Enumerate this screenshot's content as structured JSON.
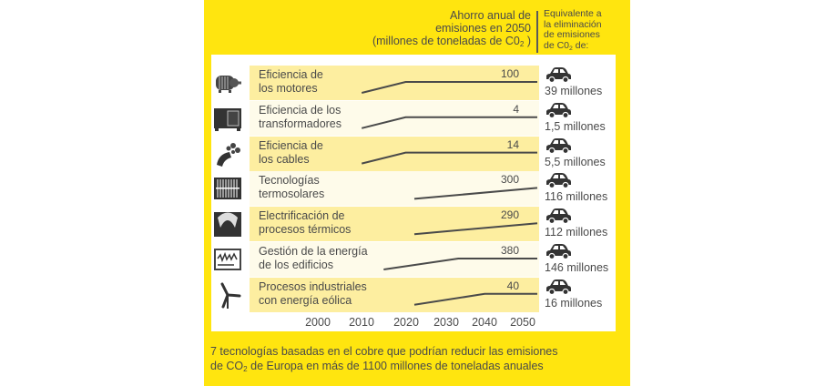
{
  "header": {
    "left_line1": "Ahorro anual de",
    "left_line2": "emisiones en 2050",
    "left_line3_pre": "(millones de toneladas de C0",
    "left_line3_sub": "2",
    "left_line3_post": " )",
    "right_line1": "Equivalente a",
    "right_line2": "la eliminación",
    "right_line3": "de emisiones",
    "right_line4_pre": "de C0",
    "right_line4_sub": "2",
    "right_line4_post": " de:"
  },
  "footer": {
    "line1": "7 tecnologías basadas en el cobre que podrían reducir las emisiones",
    "line2_pre": "de CO",
    "line2_sub": "2",
    "line2_post": " de Europa en más de 1100 millones de toneladas anuales"
  },
  "colors": {
    "panel_yellow": "#ffe50f",
    "row_dark": "#fdeea0",
    "row_light": "#fefbea",
    "line": "#4a4a4a"
  },
  "chart_data": {
    "type": "line",
    "title": "Ahorro anual de emisiones en 2050 (millones de toneladas de CO2)",
    "xlabel": "",
    "ylabel": "",
    "x_ticks": [
      2000,
      2010,
      2020,
      2030,
      2040,
      2050
    ],
    "xlim": [
      2000,
      2050
    ],
    "series": [
      {
        "name": "Eficiencia de los motores",
        "label_line1": "Eficiencia de",
        "label_line2": "los motores",
        "icon": "motor-icon",
        "value_2050": "100",
        "cars": "39 millones",
        "points": [
          [
            2010,
            0
          ],
          [
            2020,
            1
          ],
          [
            2050,
            1
          ]
        ]
      },
      {
        "name": "Eficiencia de los transformadores",
        "label_line1": "Eficiencia de los",
        "label_line2": "transformadores",
        "icon": "transformer-icon",
        "value_2050": "4",
        "cars": "1,5 millones",
        "points": [
          [
            2010,
            0
          ],
          [
            2020,
            1
          ],
          [
            2050,
            1
          ]
        ]
      },
      {
        "name": "Eficiencia de los cables",
        "label_line1": "Eficiencia de",
        "label_line2": "los cables",
        "icon": "cable-icon",
        "value_2050": "14",
        "cars": "5,5 millones",
        "points": [
          [
            2010,
            0
          ],
          [
            2020,
            1
          ],
          [
            2050,
            1
          ]
        ]
      },
      {
        "name": "Tecnologías termosolares",
        "label_line1": "Tecnologías",
        "label_line2": "termosolares",
        "icon": "solar-panel-icon",
        "value_2050": "300",
        "cars": "116 millones",
        "points": [
          [
            2022,
            0
          ],
          [
            2050,
            1
          ]
        ]
      },
      {
        "name": "Electrificación de procesos térmicos",
        "label_line1": "Electrificación de",
        "label_line2": "procesos térmicos",
        "icon": "furnace-icon",
        "value_2050": "290",
        "cars": "112 millones",
        "points": [
          [
            2022,
            0
          ],
          [
            2050,
            1
          ]
        ]
      },
      {
        "name": "Gestión de la energía de los edificios",
        "label_line1": "Gestión de la energía",
        "label_line2": "de los edificios",
        "icon": "monitor-icon",
        "value_2050": "380",
        "cars": "146 millones",
        "points": [
          [
            2015,
            0
          ],
          [
            2032,
            1
          ],
          [
            2050,
            1
          ]
        ]
      },
      {
        "name": "Procesos industriales con energía eólica",
        "label_line1": "Procesos industriales",
        "label_line2": "con energía eólica",
        "icon": "wind-turbine-icon",
        "value_2050": "40",
        "cars": "16 millones",
        "points": [
          [
            2022,
            0
          ],
          [
            2038,
            1
          ],
          [
            2050,
            1
          ]
        ]
      }
    ]
  }
}
